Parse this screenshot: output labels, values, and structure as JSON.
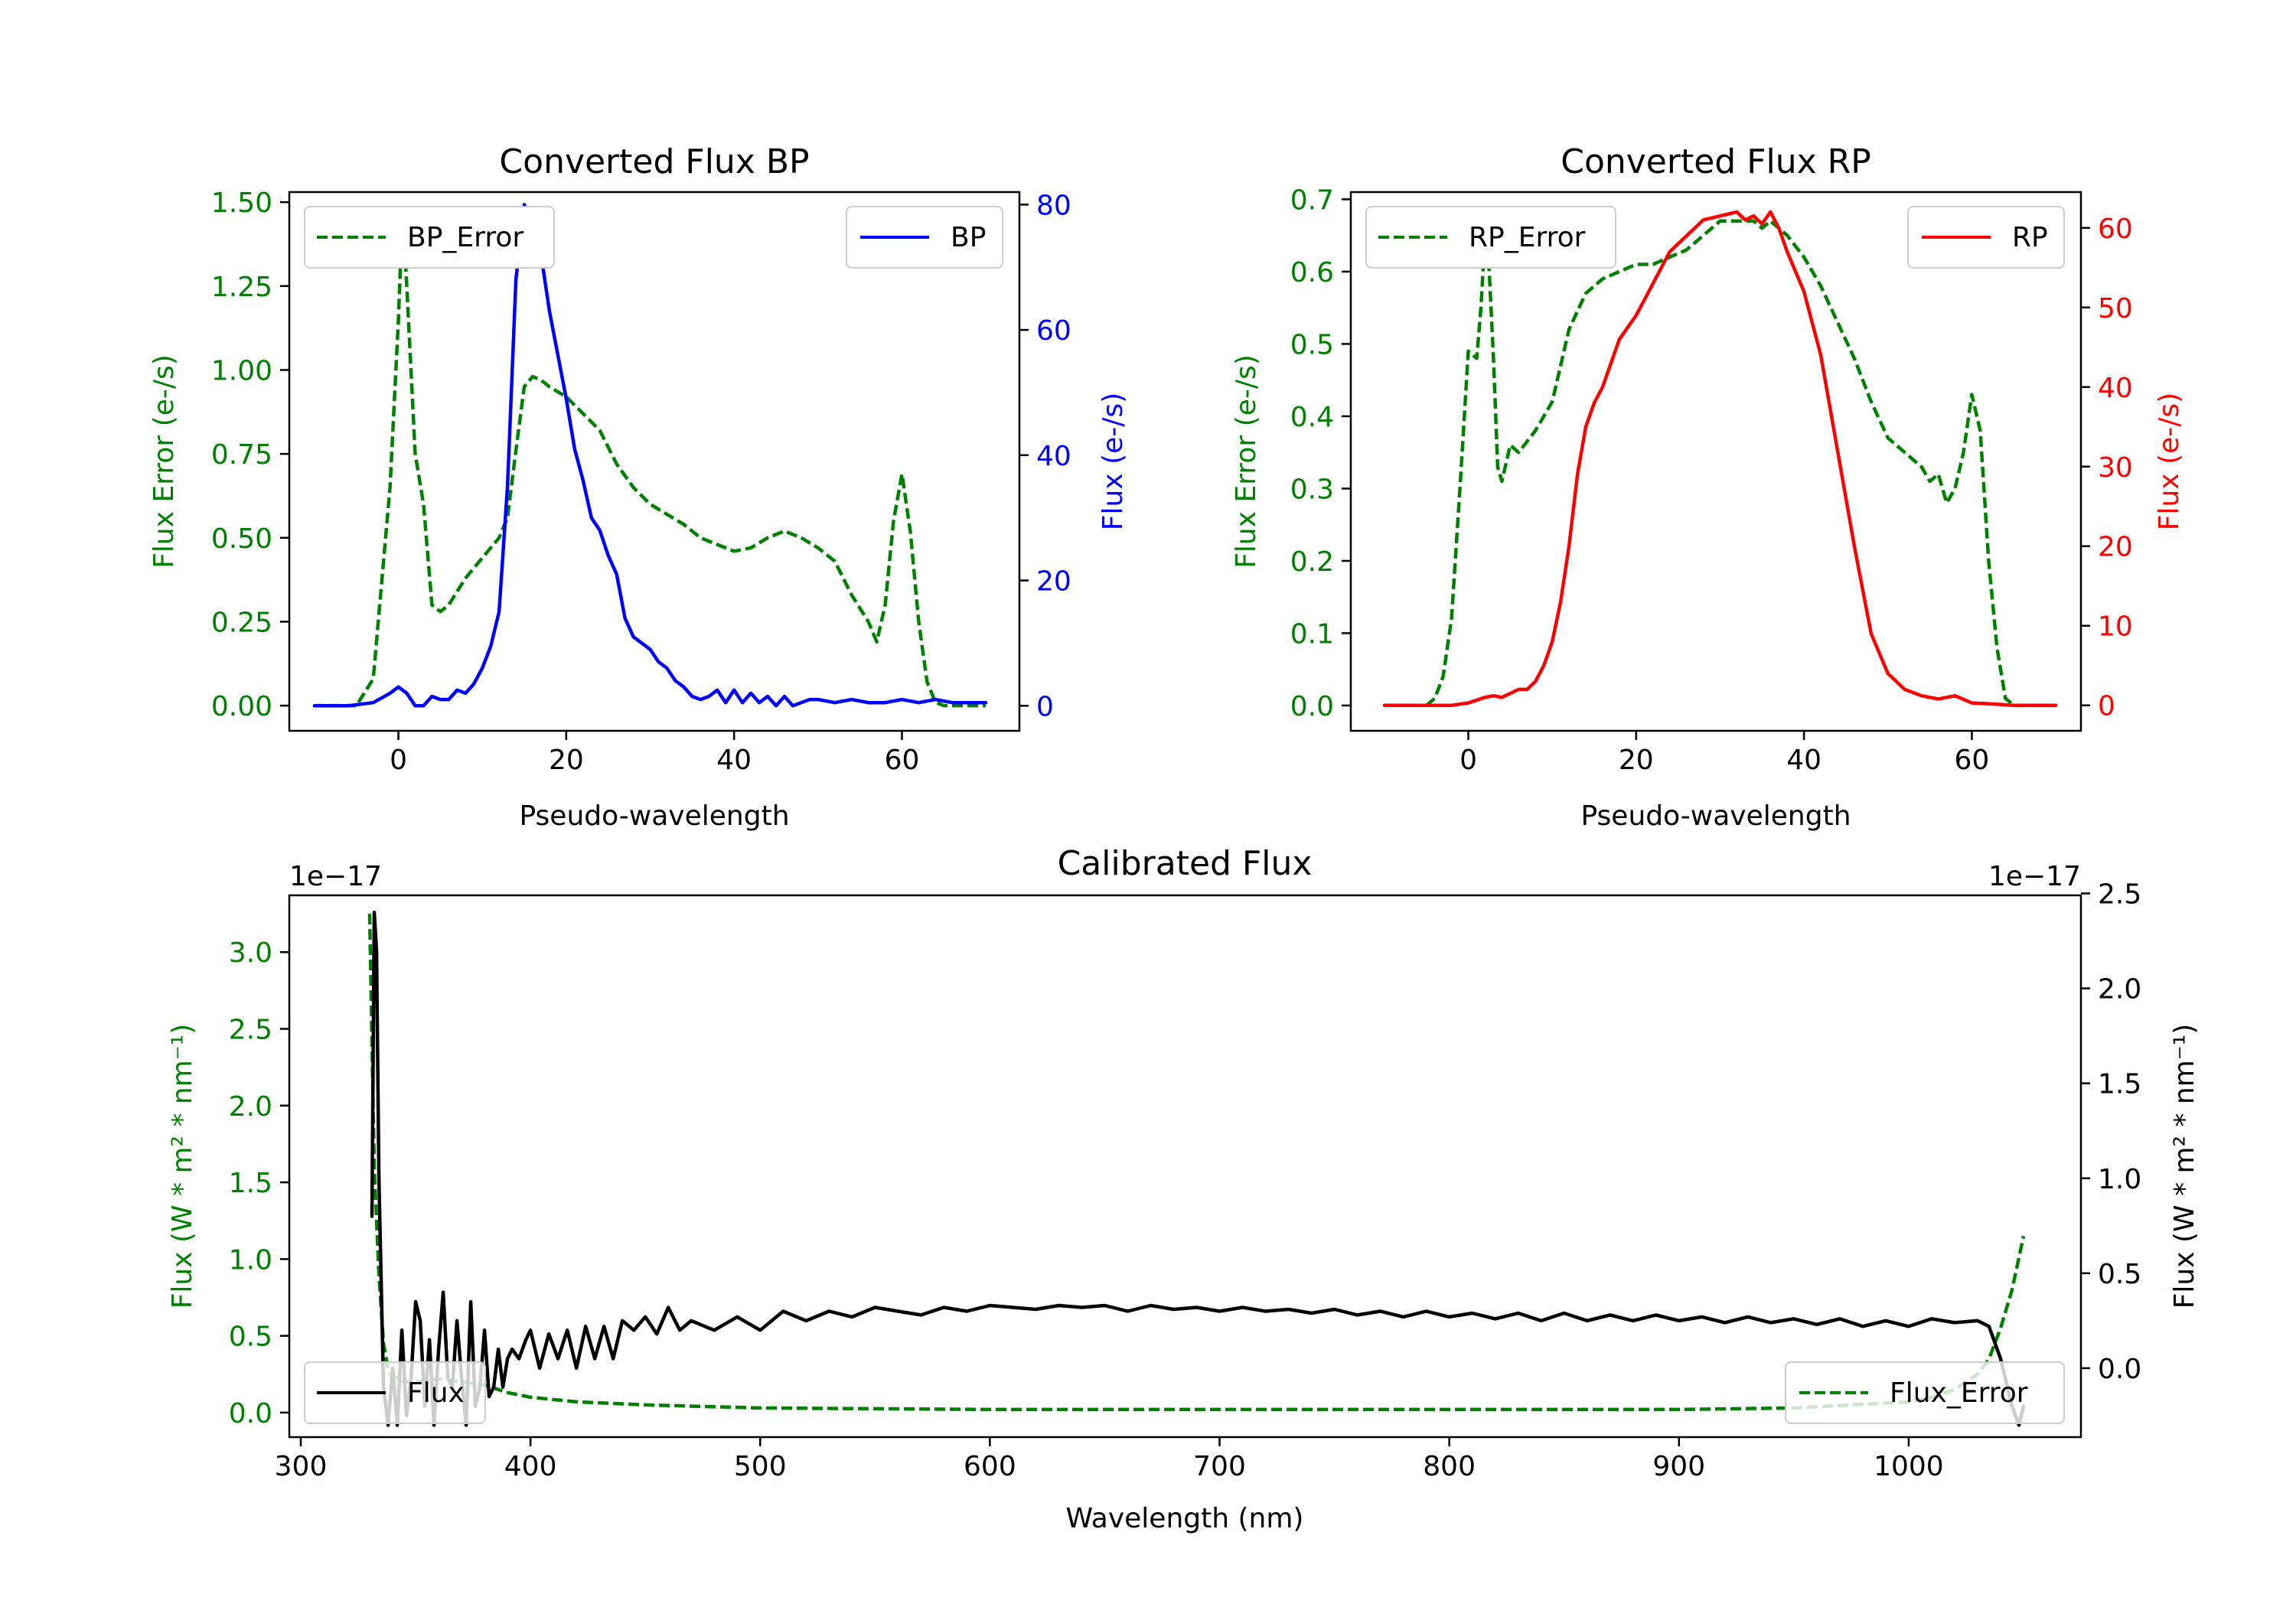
{
  "chart_data": [
    {
      "type": "line",
      "title": "Converted Flux BP",
      "xlabel": "Pseudo-wavelength",
      "ylabel_left": "Flux Error (e-/s)",
      "ylabel_right": "Flux (e-/s)",
      "xlim": [
        -13,
        74
      ],
      "ylim_left": [
        -0.075,
        1.53
      ],
      "ylim_right": [
        -4,
        82
      ],
      "xticks": [
        "0",
        "20",
        "40",
        "60"
      ],
      "xtick_values": [
        0,
        20,
        40,
        60
      ],
      "yticks_left": [
        "0.00",
        "0.25",
        "0.50",
        "0.75",
        "1.00",
        "1.25",
        "1.50"
      ],
      "ytick_values_left": [
        0,
        0.25,
        0.5,
        0.75,
        1.0,
        1.25,
        1.5
      ],
      "yticks_right": [
        "0",
        "20",
        "40",
        "60",
        "80"
      ],
      "ytick_values_right": [
        0,
        20,
        40,
        60,
        80
      ],
      "left_color": "#008000",
      "right_color": "#0000ff",
      "series": [
        {
          "name": "BP_Error",
          "axis": "left",
          "style": "dashed",
          "color": "#008000",
          "x": [
            -10,
            -5,
            -3,
            -1,
            0,
            0.5,
            1,
            2,
            3,
            4,
            5,
            6,
            8,
            10,
            12,
            13,
            14,
            15,
            16,
            17,
            18,
            20,
            22,
            24,
            26,
            28,
            30,
            32,
            34,
            36,
            38,
            40,
            42,
            44,
            46,
            48,
            50,
            52,
            54,
            56,
            57,
            58,
            59,
            60,
            61,
            62,
            63,
            64,
            65,
            70
          ],
          "y": [
            0,
            0,
            0.08,
            0.65,
            1.15,
            1.48,
            1.25,
            0.75,
            0.6,
            0.3,
            0.28,
            0.3,
            0.38,
            0.44,
            0.5,
            0.56,
            0.76,
            0.95,
            0.98,
            0.97,
            0.95,
            0.92,
            0.87,
            0.82,
            0.72,
            0.65,
            0.6,
            0.57,
            0.54,
            0.5,
            0.48,
            0.46,
            0.47,
            0.5,
            0.52,
            0.5,
            0.47,
            0.43,
            0.33,
            0.25,
            0.19,
            0.3,
            0.55,
            0.69,
            0.52,
            0.25,
            0.07,
            0.01,
            0,
            0
          ]
        },
        {
          "name": "BP",
          "axis": "right",
          "style": "solid",
          "color": "#0000ff",
          "x": [
            -10,
            -6,
            -3,
            -1,
            0,
            1,
            2,
            3,
            4,
            5,
            6,
            7,
            8,
            9,
            10,
            11,
            12,
            13,
            14,
            15,
            16,
            17,
            18,
            19,
            20,
            21,
            22,
            23,
            24,
            25,
            26,
            27,
            28,
            29,
            30,
            31,
            32,
            33,
            34,
            35,
            36,
            37,
            38,
            39,
            40,
            41,
            42,
            43,
            44,
            45,
            46,
            47,
            48,
            49,
            50,
            52,
            54,
            56,
            58,
            60,
            62,
            64,
            66,
            68,
            70
          ],
          "y": [
            0,
            0,
            0.5,
            2,
            3,
            2,
            0,
            0,
            1.5,
            1,
            1,
            2.5,
            2,
            3.5,
            6,
            9.5,
            15,
            35,
            68,
            80,
            77,
            72,
            63,
            56,
            49,
            41,
            36,
            30,
            28,
            24,
            21,
            14,
            11,
            10,
            9,
            7,
            6,
            4,
            3,
            1.5,
            1,
            1.5,
            2.5,
            0.5,
            2.5,
            0.5,
            2,
            0.5,
            1.5,
            0,
            1.5,
            0,
            0.5,
            1,
            1,
            0.5,
            1,
            0.5,
            0.5,
            1,
            0.5,
            1,
            0.5,
            0.5,
            0.5
          ]
        }
      ]
    },
    {
      "type": "line",
      "title": "Converted Flux RP",
      "xlabel": "Pseudo-wavelength",
      "ylabel_left": "Flux Error (e-/s)",
      "ylabel_right": "Flux (e-/s)",
      "xlim": [
        -14,
        73
      ],
      "ylim_left": [
        -0.035,
        0.71
      ],
      "ylim_right": [
        -3.2,
        64.5
      ],
      "xticks": [
        "0",
        "20",
        "40",
        "60"
      ],
      "xtick_values": [
        0,
        20,
        40,
        60
      ],
      "yticks_left": [
        "0.0",
        "0.1",
        "0.2",
        "0.3",
        "0.4",
        "0.5",
        "0.6",
        "0.7"
      ],
      "ytick_values_left": [
        0,
        0.1,
        0.2,
        0.3,
        0.4,
        0.5,
        0.6,
        0.7
      ],
      "yticks_right": [
        "0",
        "10",
        "20",
        "30",
        "40",
        "50",
        "60"
      ],
      "ytick_values_right": [
        0,
        10,
        20,
        30,
        40,
        50,
        60
      ],
      "left_color": "#008000",
      "right_color": "#ff0000",
      "series": [
        {
          "name": "RP_Error",
          "axis": "left",
          "style": "dashed",
          "color": "#008000",
          "x": [
            -5,
            -4,
            -3,
            -2,
            -1,
            0,
            1,
            1.5,
            2,
            2.5,
            3,
            3.5,
            4,
            5,
            6,
            8,
            10,
            12,
            14,
            16,
            18,
            20,
            22,
            24,
            26,
            28,
            30,
            32,
            34,
            35,
            36,
            38,
            40,
            42,
            44,
            46,
            48,
            50,
            52,
            54,
            55,
            56,
            57,
            58,
            59,
            60,
            61,
            62,
            63,
            64,
            65,
            70
          ],
          "y": [
            0,
            0.01,
            0.04,
            0.12,
            0.3,
            0.49,
            0.48,
            0.55,
            0.65,
            0.6,
            0.48,
            0.33,
            0.31,
            0.36,
            0.35,
            0.38,
            0.42,
            0.52,
            0.57,
            0.59,
            0.6,
            0.61,
            0.61,
            0.62,
            0.63,
            0.65,
            0.67,
            0.67,
            0.67,
            0.66,
            0.67,
            0.65,
            0.62,
            0.58,
            0.53,
            0.48,
            0.42,
            0.37,
            0.35,
            0.33,
            0.31,
            0.32,
            0.28,
            0.3,
            0.35,
            0.43,
            0.38,
            0.2,
            0.08,
            0.01,
            0,
            0
          ]
        },
        {
          "name": "RP",
          "axis": "right",
          "style": "solid",
          "color": "#ff0000",
          "x": [
            -10,
            -4,
            -2,
            0,
            2,
            3,
            4,
            5,
            6,
            7,
            8,
            9,
            10,
            11,
            12,
            13,
            14,
            15,
            16,
            18,
            20,
            22,
            24,
            26,
            28,
            30,
            32,
            33,
            34,
            35,
            36,
            37,
            38,
            40,
            42,
            44,
            46,
            48,
            50,
            52,
            54,
            56,
            58,
            60,
            62,
            65,
            70
          ],
          "y": [
            0,
            0,
            0,
            0.3,
            1,
            1.2,
            1,
            1.5,
            2,
            2,
            3,
            5,
            8,
            13,
            20,
            29,
            35,
            38,
            40,
            46,
            49,
            53,
            57,
            59,
            61,
            61.5,
            62,
            61,
            61.5,
            60.5,
            62,
            60,
            57,
            52,
            44,
            32,
            20,
            9,
            4,
            2,
            1.2,
            0.8,
            1.2,
            0.3,
            0.2,
            0,
            0
          ]
        }
      ]
    },
    {
      "type": "line",
      "title": "Calibrated Flux",
      "xlabel": "Wavelength (nm)",
      "ylabel_left": "Flux (W * m² * nm⁻¹)",
      "ylabel_right": "Flux (W * m² * nm⁻¹)",
      "offset_left": "1e−17",
      "offset_right": "1e−17",
      "xlim": [
        295,
        1075
      ],
      "ylim_left": [
        -0.16,
        3.37
      ],
      "ylim_right": [
        -0.363,
        2.49
      ],
      "xticks": [
        "300",
        "400",
        "500",
        "600",
        "700",
        "800",
        "900",
        "1000"
      ],
      "xtick_values": [
        300,
        400,
        500,
        600,
        700,
        800,
        900,
        1000
      ],
      "yticks_left": [
        "0.0",
        "0.5",
        "1.0",
        "1.5",
        "2.0",
        "2.5",
        "3.0"
      ],
      "ytick_values_left": [
        0,
        0.5,
        1.0,
        1.5,
        2.0,
        2.5,
        3.0
      ],
      "yticks_right": [
        "0.0",
        "0.5",
        "1.0",
        "1.5",
        "2.0",
        "2.5"
      ],
      "ytick_values_right": [
        0,
        0.5,
        1.0,
        1.5,
        2.0,
        2.5
      ],
      "left_color": "#008000",
      "right_color": "#000000",
      "series": [
        {
          "name": "Flux_Error",
          "axis": "left",
          "style": "dashed",
          "color": "#008000",
          "x": [
            330,
            332,
            334,
            336,
            338,
            340,
            345,
            350,
            360,
            370,
            380,
            390,
            400,
            420,
            450,
            500,
            600,
            700,
            800,
            900,
            950,
            1000,
            1010,
            1020,
            1030,
            1035,
            1040,
            1045,
            1050
          ],
          "y": [
            3.25,
            1.6,
            0.9,
            0.45,
            0.28,
            0.24,
            0.2,
            0.2,
            0.22,
            0.2,
            0.18,
            0.13,
            0.1,
            0.07,
            0.05,
            0.03,
            0.02,
            0.02,
            0.02,
            0.02,
            0.03,
            0.07,
            0.1,
            0.15,
            0.25,
            0.35,
            0.55,
            0.8,
            1.15
          ]
        },
        {
          "name": "Flux",
          "axis": "right",
          "style": "solid",
          "color": "#000000",
          "x": [
            331,
            332,
            333,
            334,
            336,
            338,
            340,
            342,
            344,
            346,
            348,
            350,
            352,
            354,
            356,
            358,
            360,
            362,
            364,
            366,
            368,
            370,
            372,
            374,
            376,
            378,
            380,
            382,
            384,
            386,
            388,
            390,
            392,
            395,
            398,
            400,
            404,
            408,
            412,
            416,
            420,
            424,
            428,
            432,
            436,
            440,
            445,
            450,
            455,
            460,
            465,
            470,
            480,
            490,
            500,
            510,
            520,
            530,
            540,
            550,
            560,
            570,
            580,
            590,
            600,
            610,
            620,
            630,
            640,
            650,
            660,
            670,
            680,
            690,
            700,
            710,
            720,
            730,
            740,
            750,
            760,
            770,
            780,
            790,
            800,
            810,
            820,
            830,
            840,
            850,
            860,
            870,
            880,
            890,
            900,
            910,
            920,
            930,
            940,
            950,
            960,
            970,
            980,
            990,
            1000,
            1010,
            1020,
            1030,
            1035,
            1040,
            1045,
            1048,
            1050
          ],
          "y": [
            0.8,
            2.4,
            2.2,
            1.0,
            -0.1,
            -0.3,
            0.0,
            -0.3,
            0.2,
            -0.25,
            -0.05,
            0.35,
            0.25,
            -0.2,
            0.15,
            -0.3,
            0.1,
            0.4,
            -0.05,
            -0.1,
            0.25,
            -0.05,
            -0.3,
            0.35,
            -0.2,
            -0.1,
            0.2,
            -0.15,
            -0.1,
            0.1,
            -0.1,
            0.05,
            0.1,
            0.05,
            0.15,
            0.2,
            0.0,
            0.18,
            0.05,
            0.2,
            0.0,
            0.22,
            0.05,
            0.22,
            0.05,
            0.25,
            0.2,
            0.27,
            0.18,
            0.32,
            0.2,
            0.25,
            0.2,
            0.27,
            0.2,
            0.3,
            0.25,
            0.3,
            0.27,
            0.32,
            0.3,
            0.28,
            0.32,
            0.3,
            0.33,
            0.32,
            0.31,
            0.33,
            0.32,
            0.33,
            0.3,
            0.33,
            0.31,
            0.32,
            0.3,
            0.32,
            0.3,
            0.31,
            0.29,
            0.31,
            0.28,
            0.3,
            0.27,
            0.3,
            0.27,
            0.29,
            0.26,
            0.29,
            0.25,
            0.29,
            0.25,
            0.28,
            0.25,
            0.28,
            0.25,
            0.27,
            0.24,
            0.27,
            0.24,
            0.26,
            0.23,
            0.26,
            0.22,
            0.25,
            0.22,
            0.26,
            0.24,
            0.25,
            0.22,
            0.05,
            -0.2,
            -0.3,
            -0.2
          ]
        }
      ]
    }
  ]
}
